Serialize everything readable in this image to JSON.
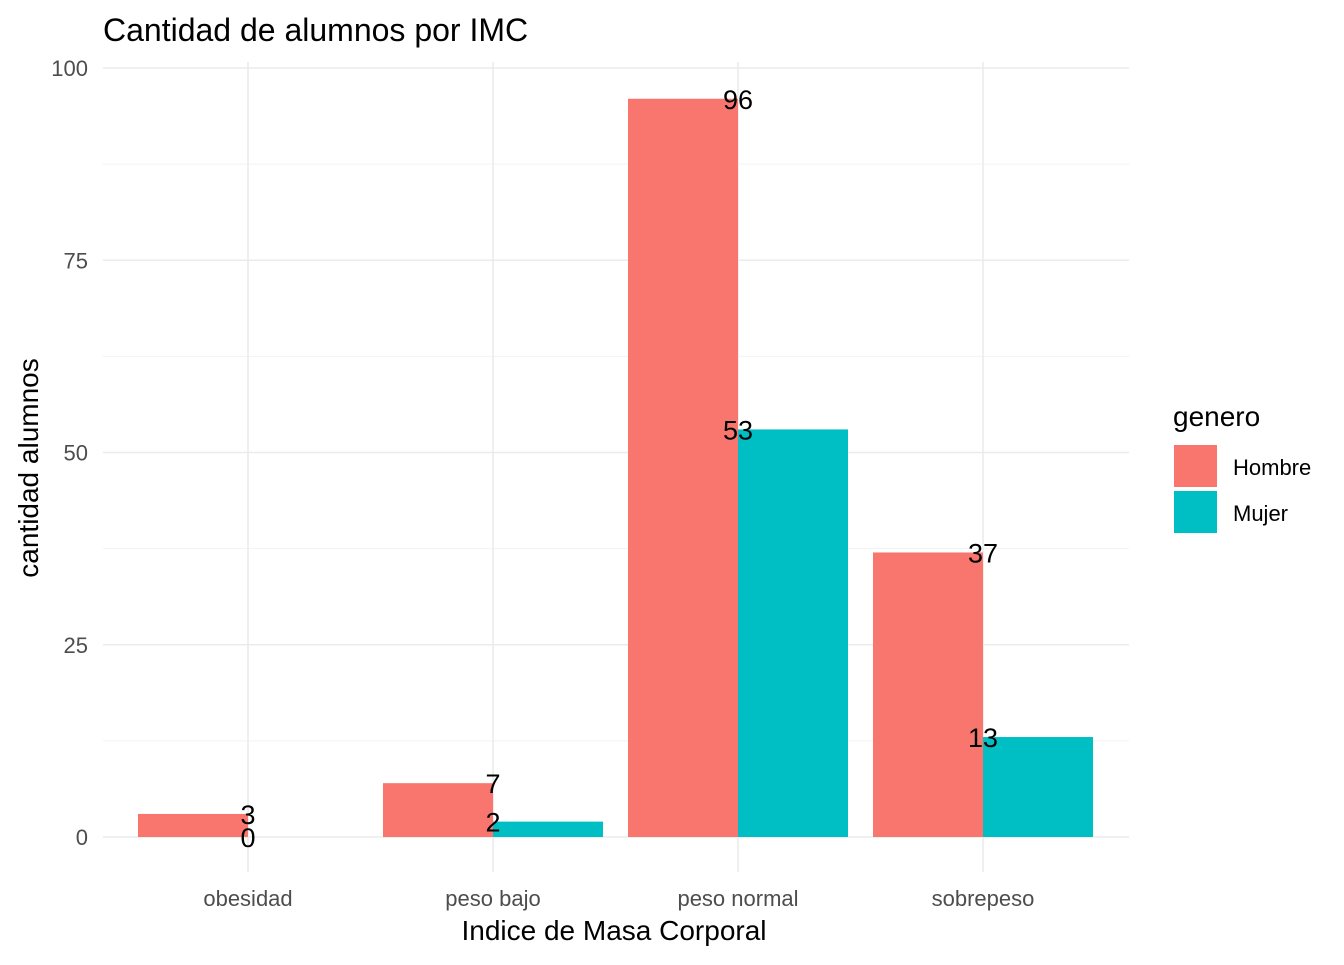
{
  "chart_data": {
    "type": "bar",
    "title": "Cantidad de alumnos por IMC",
    "xlabel": "Indice de Masa Corporal",
    "ylabel": "cantidad alumnos",
    "categories": [
      "obesidad",
      "peso bajo",
      "peso normal",
      "sobrepeso"
    ],
    "series": [
      {
        "name": "Hombre",
        "color": "#F8766D",
        "values": [
          3,
          7,
          96,
          37
        ]
      },
      {
        "name": "Mujer",
        "color": "#00BFC4",
        "values": [
          0,
          2,
          53,
          13
        ]
      }
    ],
    "ylim": [
      0,
      100
    ],
    "yticks": [
      0,
      25,
      50,
      75,
      100
    ],
    "grid": true,
    "legend": {
      "title": "genero",
      "placement": "right"
    }
  }
}
